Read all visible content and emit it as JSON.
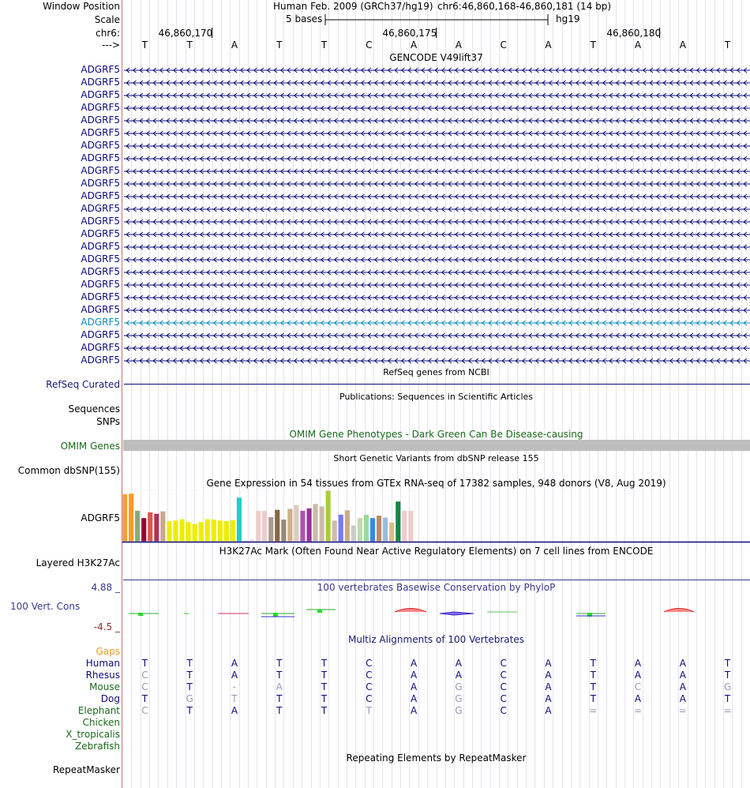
{
  "header": {
    "window_position_label": "Window Position",
    "assembly": "Human Feb. 2009 (GRCh37/hg19)",
    "position": "chr6:46,860,168-46,860,181 (14 bp)",
    "scale_label": "Scale",
    "scale_text": "5 bases",
    "scale_db": "hg19",
    "chrom_label": "chr6:",
    "ruler_ticks": [
      "46,860,170",
      "46,860,175",
      "46,860,180"
    ],
    "strand_label": "--->",
    "bases": [
      "T",
      "T",
      "A",
      "T",
      "T",
      "C",
      "A",
      "A",
      "C",
      "A",
      "T",
      "A",
      "A",
      "T"
    ]
  },
  "gencode": {
    "title": "GENCODE V49lift37",
    "labels": [
      "ADGRF5",
      "ADGRF5",
      "ADGRF5",
      "ADGRF5",
      "ADGRF5",
      "ADGRF5",
      "ADGRF5",
      "ADGRF5",
      "ADGRF5",
      "ADGRF5",
      "ADGRF5",
      "ADGRF5",
      "ADGRF5",
      "ADGRF5",
      "ADGRF5",
      "ADGRF5",
      "ADGRF5",
      "ADGRF5",
      "ADGRF5",
      "ADGRF5",
      "ADGRF5",
      "ADGRF5",
      "ADGRF5",
      "ADGRF5"
    ],
    "highlight_index": 20,
    "color": "#0c0c78",
    "highlight_color": "#0c8cb8"
  },
  "refseq": {
    "title": "RefSeq genes from NCBI",
    "label": "RefSeq Curated"
  },
  "publications": {
    "title": "Publications: Sequences in Scientific Articles",
    "label1": "Sequences",
    "label2": "SNPs"
  },
  "omim": {
    "title": "OMIM Gene Phenotypes - Dark Green Can Be Disease-causing",
    "label": "OMIM Genes"
  },
  "dbsnp": {
    "title": "Short Genetic Variants from dbSNP release 155",
    "label": "Common dbSNP(155)"
  },
  "gtex": {
    "title": "Gene Expression in 54 tissues from GTEx RNA-seq of 17382 samples, 948 donors (V8, Aug 2019)",
    "label": "ADGRF5",
    "bars": [
      {
        "v": 0.97,
        "c": "#ff9933"
      },
      {
        "v": 0.98,
        "c": "#ff9922"
      },
      {
        "v": 0.63,
        "c": "#88aa77"
      },
      {
        "v": 0.48,
        "c": "#990033"
      },
      {
        "v": 0.6,
        "c": "#dd5544"
      },
      {
        "v": 0.57,
        "c": "#aa3355"
      },
      {
        "v": 0.62,
        "c": "#c7a98c"
      },
      {
        "v": 0.42,
        "c": "#eeee00"
      },
      {
        "v": 0.43,
        "c": "#eeee00"
      },
      {
        "v": 0.46,
        "c": "#eeee00"
      },
      {
        "v": 0.4,
        "c": "#eeee00"
      },
      {
        "v": 0.36,
        "c": "#eeee00"
      },
      {
        "v": 0.4,
        "c": "#eeee00"
      },
      {
        "v": 0.46,
        "c": "#eeee00"
      },
      {
        "v": 0.45,
        "c": "#eeee00"
      },
      {
        "v": 0.43,
        "c": "#eeee00"
      },
      {
        "v": 0.42,
        "c": "#eeee00"
      },
      {
        "v": 0.44,
        "c": "#eeee00"
      },
      {
        "v": 0.9,
        "c": "#22cccc"
      },
      {
        "v": 0.02,
        "c": "#cccccc"
      },
      {
        "v": 0.04,
        "c": "#dddddd"
      },
      {
        "v": 0.63,
        "c": "#eecccc"
      },
      {
        "v": 0.63,
        "c": "#eecccc"
      },
      {
        "v": 0.5,
        "c": "#aa9988"
      },
      {
        "v": 0.65,
        "c": "#886644"
      },
      {
        "v": 0.45,
        "c": "#998877"
      },
      {
        "v": 0.67,
        "c": "#ccb088"
      },
      {
        "v": 0.75,
        "c": "#ddccbb"
      },
      {
        "v": 0.63,
        "c": "#aa55aa"
      },
      {
        "v": 0.68,
        "c": "#993399"
      },
      {
        "v": 0.77,
        "c": "#ccbbaa"
      },
      {
        "v": 0.72,
        "c": "#ccbbaa"
      },
      {
        "v": 1.04,
        "c": "#aacc33"
      },
      {
        "v": 0.43,
        "c": "#ccbbaa"
      },
      {
        "v": 0.55,
        "c": "#7777ff"
      },
      {
        "v": 0.64,
        "c": "#ccaa88"
      },
      {
        "v": 0.33,
        "c": "#cccccc"
      },
      {
        "v": 0.48,
        "c": "#bbddaa"
      },
      {
        "v": 0.55,
        "c": "#99dd99"
      },
      {
        "v": 0.48,
        "c": "#3388ee"
      },
      {
        "v": 0.53,
        "c": "#bb8866"
      },
      {
        "v": 0.49,
        "c": "#99bbdd"
      },
      {
        "v": 0.39,
        "c": "#ddbb88"
      },
      {
        "v": 0.82,
        "c": "#118844"
      },
      {
        "v": 0.63,
        "c": "#eecccc"
      },
      {
        "v": 0.63,
        "c": "#eecccc"
      }
    ]
  },
  "h3k27ac": {
    "title": "H3K27Ac Mark (Often Found Near Active Regulatory Elements) on 7 cell lines from ENCODE",
    "label": "Layered H3K27Ac"
  },
  "conservation": {
    "title": "100 vertebrates Basewise Conservation by PhyloP",
    "label": "100 Vert. Cons",
    "max_label": "4.88 _",
    "min_label": "-4.5 _",
    "label_color": "#3a3a8a"
  },
  "multiz": {
    "title": "Multiz Alignments of 100 Vertebrates",
    "gaps_label": "Gaps",
    "species": [
      {
        "name": "Human",
        "color": "#0c0c78",
        "bases": [
          "T",
          "T",
          "A",
          "T",
          "T",
          "C",
          "A",
          "A",
          "C",
          "A",
          "T",
          "A",
          "A",
          "T"
        ],
        "dim": []
      },
      {
        "name": "Rhesus",
        "color": "#0c0c78",
        "bases": [
          "C",
          "T",
          "A",
          "T",
          "T",
          "C",
          "A",
          "A",
          "C",
          "A",
          "T",
          "A",
          "A",
          "T"
        ],
        "dim": [
          0
        ]
      },
      {
        "name": "Mouse",
        "color": "#1a6a1a",
        "bases": [
          "C",
          "T",
          "-",
          "A",
          "T",
          "C",
          "A",
          "G",
          "C",
          "A",
          "T",
          "C",
          "A",
          "G"
        ],
        "dim": [
          0,
          2,
          3,
          7,
          11,
          13
        ]
      },
      {
        "name": "Dog",
        "color": "#0c0c78",
        "bases": [
          "T",
          "G",
          "T",
          "T",
          "T",
          "C",
          "A",
          "G",
          "C",
          "A",
          "T",
          "A",
          "A",
          "T"
        ],
        "dim": [
          1,
          2,
          7
        ]
      },
      {
        "name": "Elephant",
        "color": "#1a6a1a",
        "bases": [
          "C",
          "T",
          "A",
          "T",
          "T",
          "T",
          "A",
          "G",
          "C",
          "A",
          "=",
          "=",
          "=",
          "="
        ],
        "dim": [
          0,
          5,
          7,
          10,
          11,
          12,
          13
        ]
      },
      {
        "name": "Chicken",
        "color": "#1a6a1a",
        "bases": [],
        "dim": []
      },
      {
        "name": "X_tropicalis",
        "color": "#1a6a1a",
        "bases": [],
        "dim": []
      },
      {
        "name": "Zebrafish",
        "color": "#1a6a1a",
        "bases": [],
        "dim": []
      }
    ]
  },
  "repeatmasker": {
    "title": "Repeating Elements by RepeatMasker",
    "label": "RepeatMasker"
  }
}
